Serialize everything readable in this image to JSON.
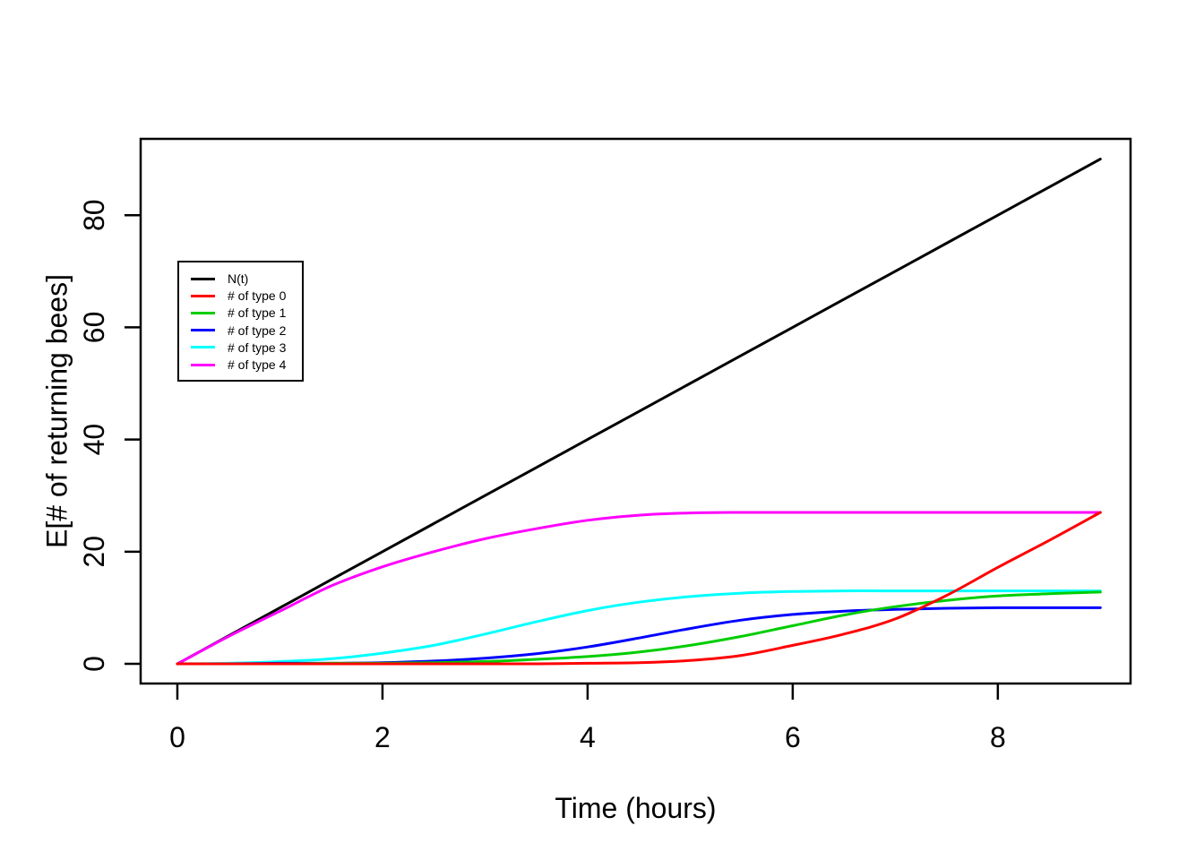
{
  "chart_data": {
    "type": "line",
    "title": "",
    "xlabel": "Time (hours)",
    "ylabel": "E[# of returning bees]",
    "x": [
      0,
      0.5,
      1,
      1.5,
      2,
      2.5,
      3,
      3.5,
      4,
      4.5,
      5,
      5.5,
      6,
      6.5,
      7,
      7.5,
      8,
      8.5,
      9
    ],
    "series": [
      {
        "name": "N(t)",
        "color": "#000000",
        "values": [
          0,
          5,
          10,
          15,
          20,
          25,
          30,
          35,
          40,
          45,
          50,
          55,
          60,
          65,
          70,
          75,
          80,
          85,
          90
        ]
      },
      {
        "name": "# of type 0",
        "color": "#FF0000",
        "values": [
          0,
          0,
          0,
          0,
          0,
          0,
          0,
          0,
          0.1,
          0.2,
          0.6,
          1.5,
          3.3,
          5.3,
          8.0,
          12.2,
          17.2,
          22.0,
          27
        ]
      },
      {
        "name": "# of type 1",
        "color": "#00CD00",
        "values": [
          0,
          0,
          0,
          0.1,
          0.1,
          0.2,
          0.4,
          0.8,
          1.3,
          2.1,
          3.3,
          4.9,
          6.8,
          8.7,
          10.2,
          11.3,
          12.1,
          12.5,
          12.8
        ]
      },
      {
        "name": "# of type 2",
        "color": "#0000FF",
        "values": [
          0,
          0,
          0.1,
          0.1,
          0.2,
          0.5,
          1.0,
          1.8,
          3.0,
          4.6,
          6.3,
          7.8,
          8.8,
          9.4,
          9.7,
          9.9,
          10,
          10,
          10
        ]
      },
      {
        "name": "# of type 3",
        "color": "#00FFFF",
        "values": [
          0,
          0.1,
          0.4,
          0.9,
          1.9,
          3.3,
          5.3,
          7.5,
          9.5,
          11.0,
          12.0,
          12.6,
          12.9,
          13,
          13,
          13,
          13,
          13,
          13
        ]
      },
      {
        "name": "# of type 4",
        "color": "#FF00FF",
        "values": [
          0,
          4.9,
          9.4,
          13.9,
          17.3,
          20.0,
          22.3,
          24.1,
          25.6,
          26.5,
          26.9,
          27,
          27,
          27,
          27,
          27,
          27,
          27,
          27
        ]
      }
    ],
    "x_ticks": [
      0,
      2,
      4,
      6,
      8
    ],
    "y_ticks": [
      0,
      20,
      40,
      60,
      80
    ],
    "x_range": [
      -0.358,
      9.294
    ],
    "y_range": [
      -3.51,
      93.61
    ],
    "grid": false,
    "legend_position": "upper-left-inside",
    "axis_color": "#000000",
    "background_color": "#FFFFFF"
  }
}
